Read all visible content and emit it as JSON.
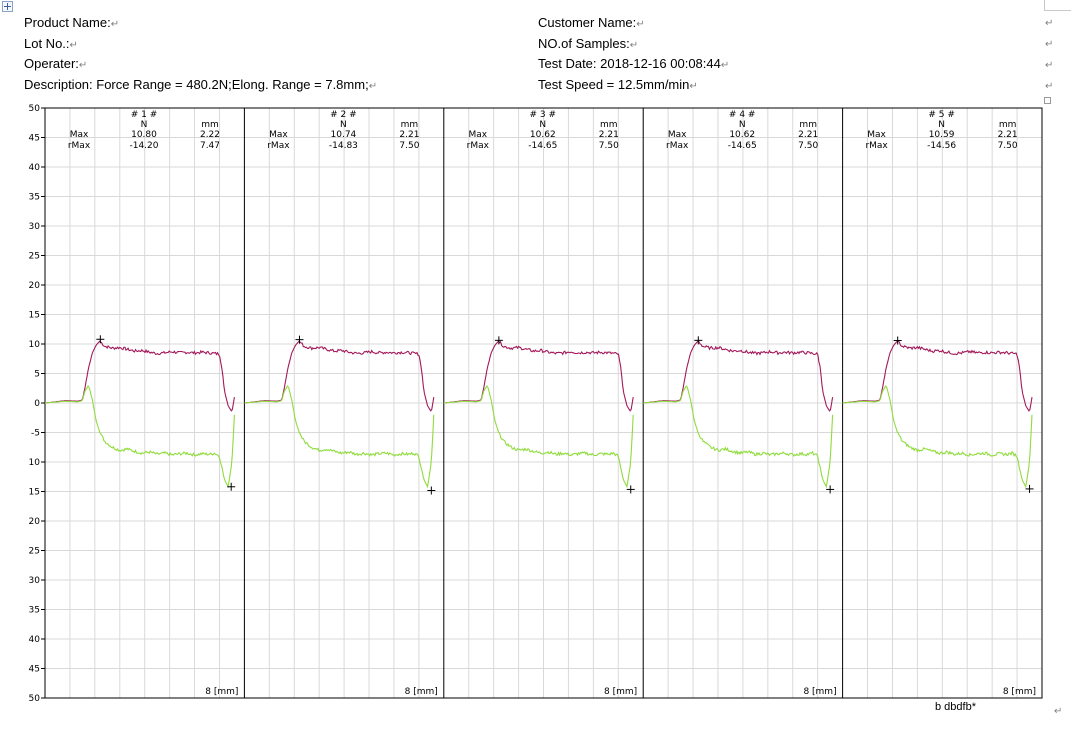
{
  "header": {
    "product_name_label": "Product Name:",
    "customer_name_label": "Customer Name:",
    "lot_no_label": "Lot No.:",
    "samples_label": "NO.of Samples:",
    "operater_label": "Operater:",
    "test_date": "Test Date: 2018-12-16  00:08:44",
    "description": "Description:   Force Range = 480.2N;Elong. Range = 7.8mm;",
    "test_speed": "Test Speed = 12.5mm/min",
    "para_mark": "↵"
  },
  "footer_text": "b  dbdfb*",
  "colors": {
    "force": "#a3195b",
    "green": "#8fdc3c",
    "grid": "#d9d9d9",
    "border": "#000000"
  },
  "chart_data": {
    "type": "line",
    "ylim": [
      -50,
      50
    ],
    "y_ticks": [
      50,
      45,
      40,
      35,
      30,
      25,
      20,
      15,
      10,
      5,
      0,
      -5,
      -10,
      -15,
      -20,
      -25,
      -30,
      -35,
      -40,
      -45,
      -50
    ],
    "y_tick_labels": [
      "50",
      "45",
      "40",
      "35",
      "30",
      "25",
      "20",
      "15",
      "10",
      "5",
      "0",
      "-5",
      "10",
      "15",
      "20",
      "25",
      "30",
      "35",
      "40",
      "45",
      "50"
    ],
    "xlim": [
      0,
      8
    ],
    "xlabel": "8 [mm]",
    "stat_headers": {
      "force_unit": "N",
      "elong_unit": "mm",
      "max_label": "Max",
      "rmax_label": "rMax"
    },
    "panels": [
      {
        "title": "# 1 #",
        "max_force": "10.80",
        "max_elong": "2.22",
        "rmax_force": "-14.20",
        "rmax_elong": "7.47",
        "max_point": [
          2.22,
          10.8
        ],
        "rmax_point": [
          7.47,
          -14.2
        ]
      },
      {
        "title": "# 2 #",
        "max_force": "10.74",
        "max_elong": "2.21",
        "rmax_force": "-14.83",
        "rmax_elong": "7.50",
        "max_point": [
          2.21,
          10.74
        ],
        "rmax_point": [
          7.5,
          -14.83
        ]
      },
      {
        "title": "# 3 #",
        "max_force": "10.62",
        "max_elong": "2.21",
        "rmax_force": "-14.65",
        "rmax_elong": "7.50",
        "max_point": [
          2.21,
          10.62
        ],
        "rmax_point": [
          7.5,
          -14.65
        ]
      },
      {
        "title": "# 4 #",
        "max_force": "10.62",
        "max_elong": "2.21",
        "rmax_force": "-14.65",
        "rmax_elong": "7.50",
        "max_point": [
          2.21,
          10.62
        ],
        "rmax_point": [
          7.5,
          -14.65
        ]
      },
      {
        "title": "# 5 #",
        "max_force": "10.59",
        "max_elong": "2.21",
        "rmax_force": "-14.56",
        "rmax_elong": "7.50",
        "max_point": [
          2.21,
          10.59
        ],
        "rmax_point": [
          7.5,
          -14.56
        ]
      }
    ],
    "series": [
      {
        "color": "#a3195b",
        "x": [
          0,
          0.8,
          1.3,
          1.5,
          1.6,
          1.75,
          1.9,
          2.05,
          2.2,
          2.4,
          2.7,
          3.0,
          3.3,
          3.6,
          3.9,
          4.2,
          4.5,
          4.8,
          5.1,
          5.4,
          5.7,
          6.0,
          6.3,
          6.6,
          6.8,
          7.0,
          7.1,
          7.2,
          7.35,
          7.5,
          7.6
        ],
        "y": [
          0,
          0.4,
          0.3,
          0.5,
          2.5,
          6.0,
          8.5,
          9.8,
          10.5,
          9.6,
          9.3,
          9.4,
          9.1,
          8.8,
          8.9,
          8.6,
          8.4,
          8.5,
          8.7,
          8.5,
          8.6,
          8.5,
          8.6,
          8.5,
          8.4,
          8.3,
          6.0,
          2.0,
          -0.5,
          -1.5,
          1.0
        ]
      },
      {
        "color": "#8fdc3c",
        "x": [
          0,
          0.8,
          1.3,
          1.5,
          1.6,
          1.75,
          1.9,
          2.05,
          2.2,
          2.4,
          2.7,
          3.0,
          3.3,
          3.6,
          3.9,
          4.2,
          4.5,
          4.8,
          5.1,
          5.4,
          5.7,
          6.0,
          6.3,
          6.6,
          6.8,
          7.0,
          7.1,
          7.2,
          7.35,
          7.5,
          7.6
        ],
        "y": [
          0,
          0.3,
          0.2,
          0.4,
          2.0,
          3.0,
          0.5,
          -3.0,
          -5.0,
          -6.5,
          -7.5,
          -8.0,
          -7.8,
          -8.2,
          -8.5,
          -8.3,
          -8.7,
          -8.5,
          -8.8,
          -8.6,
          -8.5,
          -8.8,
          -8.6,
          -8.7,
          -8.5,
          -9.0,
          -11.0,
          -13.0,
          -14.2,
          -10.0,
          -2.0
        ]
      }
    ]
  }
}
